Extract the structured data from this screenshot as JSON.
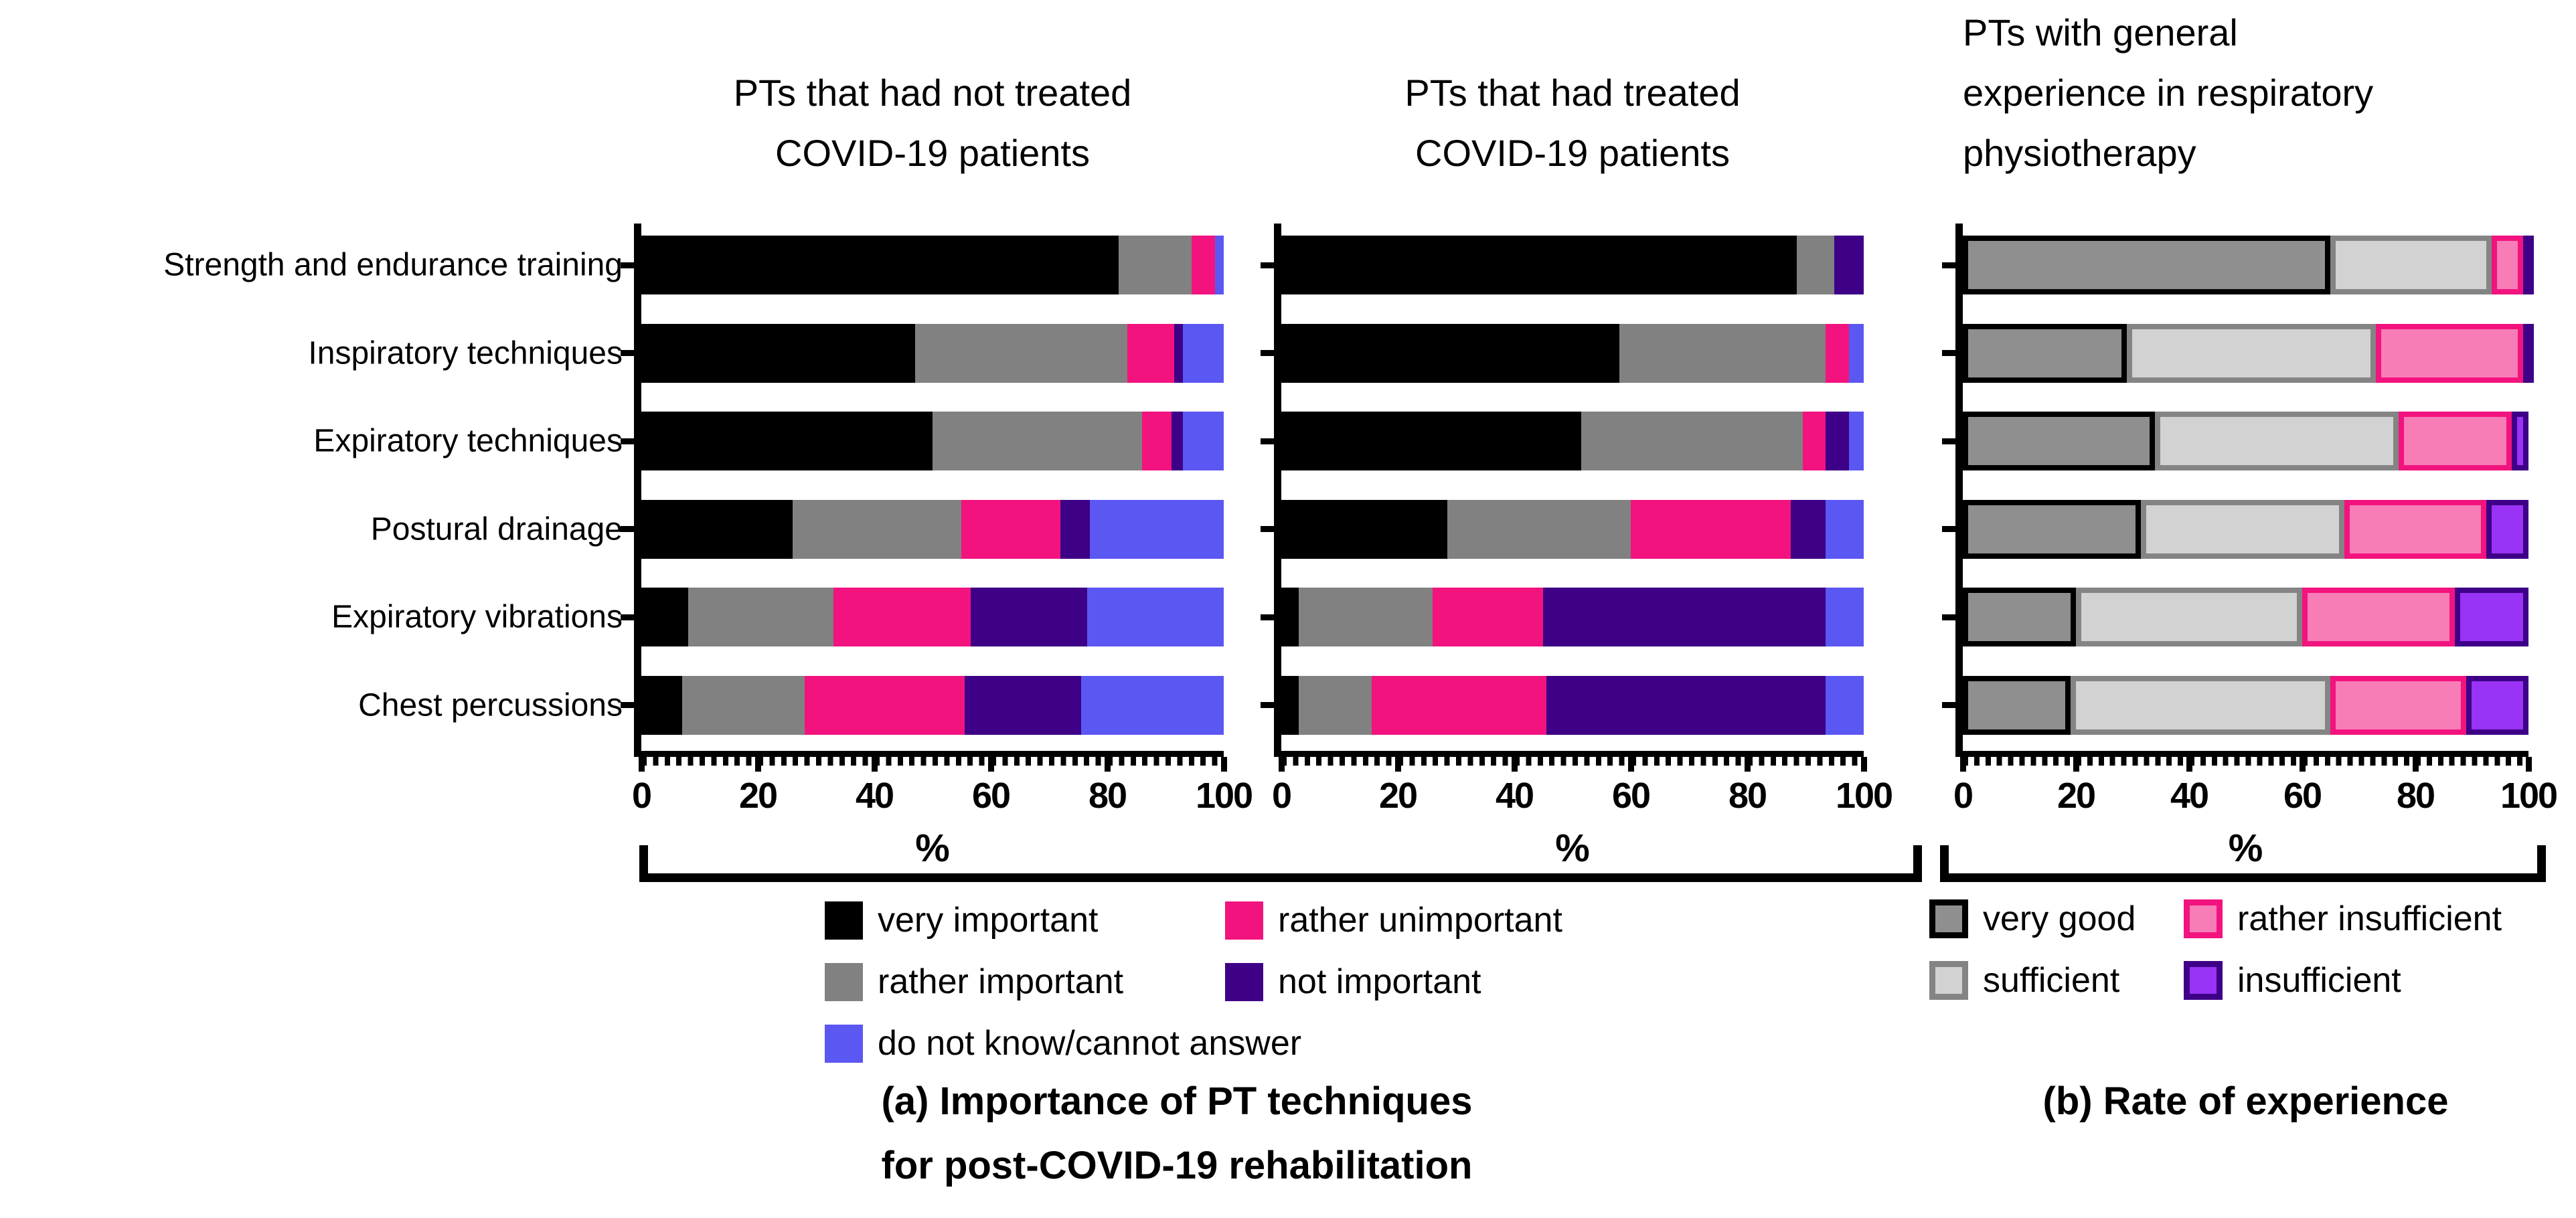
{
  "axis": {
    "ticks": [
      0,
      20,
      40,
      60,
      80,
      100
    ],
    "minor_step": 2,
    "max": 100,
    "label": "%"
  },
  "categories": [
    "Strength and endurance training",
    "Inspiratory techniques",
    "Expiratory techniques",
    "Postural drainage",
    "Expiratory vibrations",
    "Chest percussions"
  ],
  "colors": {
    "very_important": {
      "fill": "#000000"
    },
    "rather_important": {
      "fill": "#818181"
    },
    "rather_unimportant": {
      "fill": "#F2137E"
    },
    "not_important": {
      "fill": "#3D0087"
    },
    "do_not_know": {
      "fill": "#5B57F2"
    },
    "very_good": {
      "fill": "#8F8F8F",
      "border": "#000000"
    },
    "sufficient": {
      "fill": "#D2D2D2",
      "border": "#848484"
    },
    "rather_insufficient": {
      "fill": "#F87DB7",
      "border": "#F2137E"
    },
    "insufficient": {
      "fill": "#9933F5",
      "border": "#3D0087"
    }
  },
  "legend_importance": {
    "items": [
      {
        "label": "very important",
        "color": "very_important",
        "col": 0,
        "row": 0
      },
      {
        "label": "rather important",
        "color": "rather_important",
        "col": 0,
        "row": 1
      },
      {
        "label": "do not know/cannot answer",
        "color": "do_not_know",
        "col": 0,
        "row": 2
      },
      {
        "label": "rather unimportant",
        "color": "rather_unimportant",
        "col": 1,
        "row": 0
      },
      {
        "label": "not important",
        "color": "not_important",
        "col": 1,
        "row": 1
      }
    ]
  },
  "legend_experience": {
    "items": [
      {
        "label": "very good",
        "color": "very_good",
        "col": 0,
        "row": 0
      },
      {
        "label": "sufficient",
        "color": "sufficient",
        "col": 0,
        "row": 1
      },
      {
        "label": "rather insufficient",
        "color": "rather_insufficient",
        "col": 1,
        "row": 0
      },
      {
        "label": "insufficient",
        "color": "insufficient",
        "col": 1,
        "row": 1
      }
    ]
  },
  "captions": {
    "a_line1": "(a) Importance of PT techniques",
    "a_line2": "for post-COVID-19 rehabilitation",
    "b": "(b) Rate of experience"
  },
  "chart_data": [
    {
      "type": "bar",
      "orientation": "horizontal-stacked",
      "title": "PTs that had not treated COVID-19 patients",
      "title_lines": [
        "PTs that had not treated",
        "COVID-19 patients"
      ],
      "xlabel": "%",
      "xlim": [
        0,
        100
      ],
      "categories": [
        "Strength and endurance training",
        "Inspiratory techniques",
        "Expiratory techniques",
        "Postural drainage",
        "Expiratory vibrations",
        "Chest percussions"
      ],
      "series": [
        {
          "name": "very important",
          "color": "very_important",
          "values": [
            82,
            47,
            50,
            26,
            8,
            7
          ]
        },
        {
          "name": "rather important",
          "color": "rather_important",
          "values": [
            12.5,
            36.5,
            36,
            29,
            25,
            21
          ]
        },
        {
          "name": "rather unimportant",
          "color": "rather_unimportant",
          "values": [
            4,
            8,
            5,
            17,
            23.5,
            27.5
          ]
        },
        {
          "name": "not important",
          "color": "not_important",
          "values": [
            0,
            1.5,
            2,
            5,
            20,
            20
          ]
        },
        {
          "name": "do not know/cannot answer",
          "color": "do_not_know",
          "values": [
            1.5,
            7,
            7,
            23,
            23.5,
            24.5
          ]
        }
      ]
    },
    {
      "type": "bar",
      "orientation": "horizontal-stacked",
      "title": "PTs that had treated COVID-19 patients",
      "title_lines": [
        "PTs that had treated",
        "COVID-19 patients"
      ],
      "xlabel": "%",
      "xlim": [
        0,
        100
      ],
      "categories": [
        "Strength and endurance training",
        "Inspiratory techniques",
        "Expiratory techniques",
        "Postural drainage",
        "Expiratory vibrations",
        "Chest percussions"
      ],
      "series": [
        {
          "name": "very important",
          "color": "very_important",
          "values": [
            88.5,
            58,
            51.5,
            28.5,
            3,
            3
          ]
        },
        {
          "name": "rather important",
          "color": "rather_important",
          "values": [
            6.5,
            35.5,
            38,
            31.5,
            23,
            12.5
          ]
        },
        {
          "name": "rather unimportant",
          "color": "rather_unimportant",
          "values": [
            0,
            4,
            4,
            27.5,
            19,
            30
          ]
        },
        {
          "name": "not important",
          "color": "not_important",
          "values": [
            5,
            0,
            4,
            6,
            48.5,
            48
          ]
        },
        {
          "name": "do not know/cannot answer",
          "color": "do_not_know",
          "values": [
            0,
            2.5,
            2.5,
            6.5,
            6.5,
            6.5
          ]
        }
      ]
    },
    {
      "type": "bar",
      "orientation": "horizontal-stacked",
      "title": "PTs with general experience in respiratory physiotherapy",
      "title_lines": [
        "PTs with general",
        "experience in respiratory",
        "physiotherapy"
      ],
      "xlabel": "%",
      "xlim": [
        0,
        100
      ],
      "categories": [
        "Strength and endurance training",
        "Inspiratory techniques",
        "Expiratory techniques",
        "Postural drainage",
        "Expiratory vibrations",
        "Chest percussions"
      ],
      "series": [
        {
          "name": "very good",
          "color": "very_good",
          "values": [
            65,
            29,
            34,
            31.5,
            20,
            19
          ]
        },
        {
          "name": "sufficient",
          "color": "sufficient",
          "values": [
            28.5,
            44,
            43,
            36,
            40,
            46
          ]
        },
        {
          "name": "rather insufficient",
          "color": "rather_insufficient",
          "values": [
            5.5,
            26,
            20,
            25,
            27,
            24
          ]
        },
        {
          "name": "insufficient",
          "color": "insufficient",
          "values": [
            1,
            1,
            3,
            7.5,
            13,
            11
          ]
        }
      ]
    }
  ]
}
